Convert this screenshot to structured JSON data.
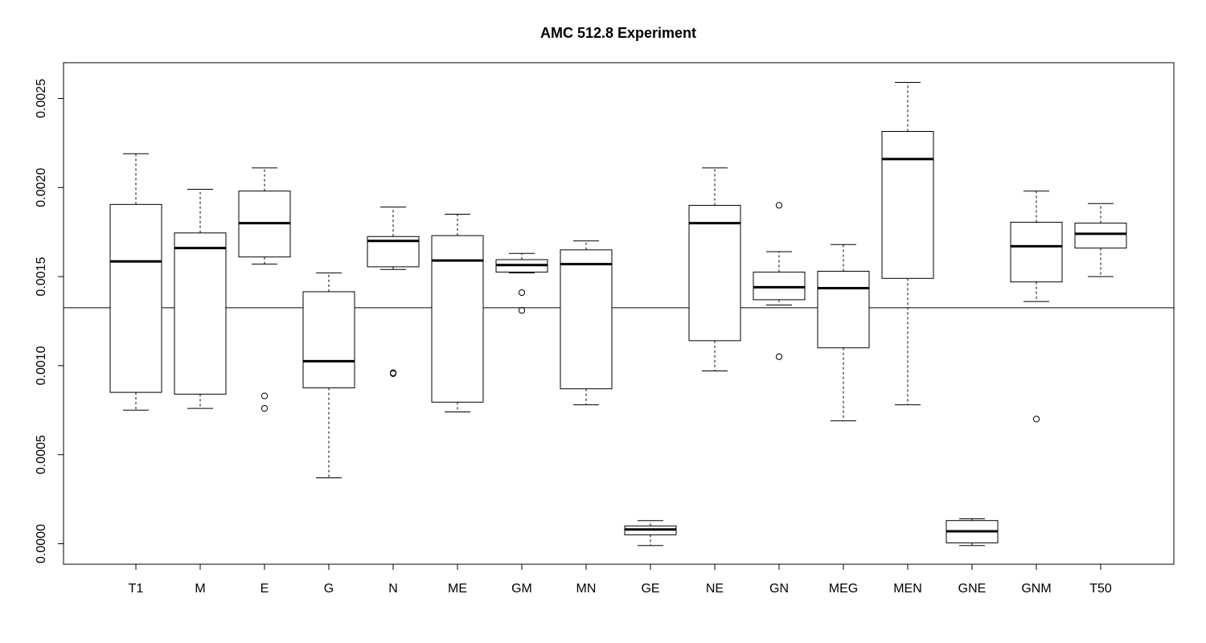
{
  "chart_data": {
    "type": "box",
    "title": "AMC 512.8 Experiment",
    "xlabel": "",
    "ylabel": "",
    "ylim": [
      -0.00011,
      0.00268
    ],
    "y_ticks": [
      "0.0000",
      "0.0005",
      "0.0010",
      "0.0015",
      "0.0020",
      "0.0025"
    ],
    "y_tick_values": [
      0,
      0.0005,
      0.001,
      0.0015,
      0.002,
      0.0025
    ],
    "reference_line": 0.001325,
    "grid": false,
    "categories": [
      "T1",
      "M",
      "E",
      "G",
      "N",
      "ME",
      "GM",
      "MN",
      "GE",
      "NE",
      "GN",
      "MEG",
      "MEN",
      "GNE",
      "GNM",
      "T50"
    ],
    "boxes": [
      {
        "name": "T1",
        "whisker_low": 0.00075,
        "q1": 0.00085,
        "median": 0.001585,
        "q3": 0.001905,
        "whisker_high": 0.00219,
        "outliers": []
      },
      {
        "name": "M",
        "whisker_low": 0.00076,
        "q1": 0.00084,
        "median": 0.00166,
        "q3": 0.001745,
        "whisker_high": 0.00199,
        "outliers": []
      },
      {
        "name": "E",
        "whisker_low": 0.00157,
        "q1": 0.00161,
        "median": 0.0018,
        "q3": 0.00198,
        "whisker_high": 0.00211,
        "outliers": [
          0.00083,
          0.00076
        ]
      },
      {
        "name": "G",
        "whisker_low": 0.00037,
        "q1": 0.000875,
        "median": 0.001025,
        "q3": 0.001415,
        "whisker_high": 0.00152,
        "outliers": []
      },
      {
        "name": "N",
        "whisker_low": 0.00154,
        "q1": 0.001555,
        "median": 0.0017,
        "q3": 0.001725,
        "whisker_high": 0.00189,
        "outliers": [
          0.00096,
          0.000955
        ]
      },
      {
        "name": "ME",
        "whisker_low": 0.00074,
        "q1": 0.000795,
        "median": 0.00159,
        "q3": 0.00173,
        "whisker_high": 0.00185,
        "outliers": []
      },
      {
        "name": "GM",
        "whisker_low": 0.00152,
        "q1": 0.001525,
        "median": 0.001565,
        "q3": 0.001595,
        "whisker_high": 0.00163,
        "outliers": [
          0.00141,
          0.00131
        ]
      },
      {
        "name": "MN",
        "whisker_low": 0.00078,
        "q1": 0.00087,
        "median": 0.00157,
        "q3": 0.00165,
        "whisker_high": 0.0017,
        "outliers": []
      },
      {
        "name": "GE",
        "whisker_low": -1e-05,
        "q1": 5e-05,
        "median": 8e-05,
        "q3": 0.0001,
        "whisker_high": 0.00013,
        "outliers": []
      },
      {
        "name": "NE",
        "whisker_low": 0.00097,
        "q1": 0.00114,
        "median": 0.0018,
        "q3": 0.0019,
        "whisker_high": 0.00211,
        "outliers": []
      },
      {
        "name": "GN",
        "whisker_low": 0.00134,
        "q1": 0.00137,
        "median": 0.00144,
        "q3": 0.001525,
        "whisker_high": 0.00164,
        "outliers": [
          0.0019,
          0.00105
        ]
      },
      {
        "name": "MEG",
        "whisker_low": 0.00069,
        "q1": 0.0011,
        "median": 0.001435,
        "q3": 0.00153,
        "whisker_high": 0.00168,
        "outliers": []
      },
      {
        "name": "MEN",
        "whisker_low": 0.00078,
        "q1": 0.00149,
        "median": 0.00216,
        "q3": 0.002315,
        "whisker_high": 0.00259,
        "outliers": []
      },
      {
        "name": "GNE",
        "whisker_low": -1e-05,
        "q1": 5e-06,
        "median": 7e-05,
        "q3": 0.00013,
        "whisker_high": 0.00014,
        "outliers": []
      },
      {
        "name": "GNM",
        "whisker_low": 0.00136,
        "q1": 0.00147,
        "median": 0.00167,
        "q3": 0.001805,
        "whisker_high": 0.00198,
        "outliers": [
          0.0007
        ]
      },
      {
        "name": "T50",
        "whisker_low": 0.0015,
        "q1": 0.00166,
        "median": 0.00174,
        "q3": 0.0018,
        "whisker_high": 0.00191,
        "outliers": []
      }
    ]
  }
}
